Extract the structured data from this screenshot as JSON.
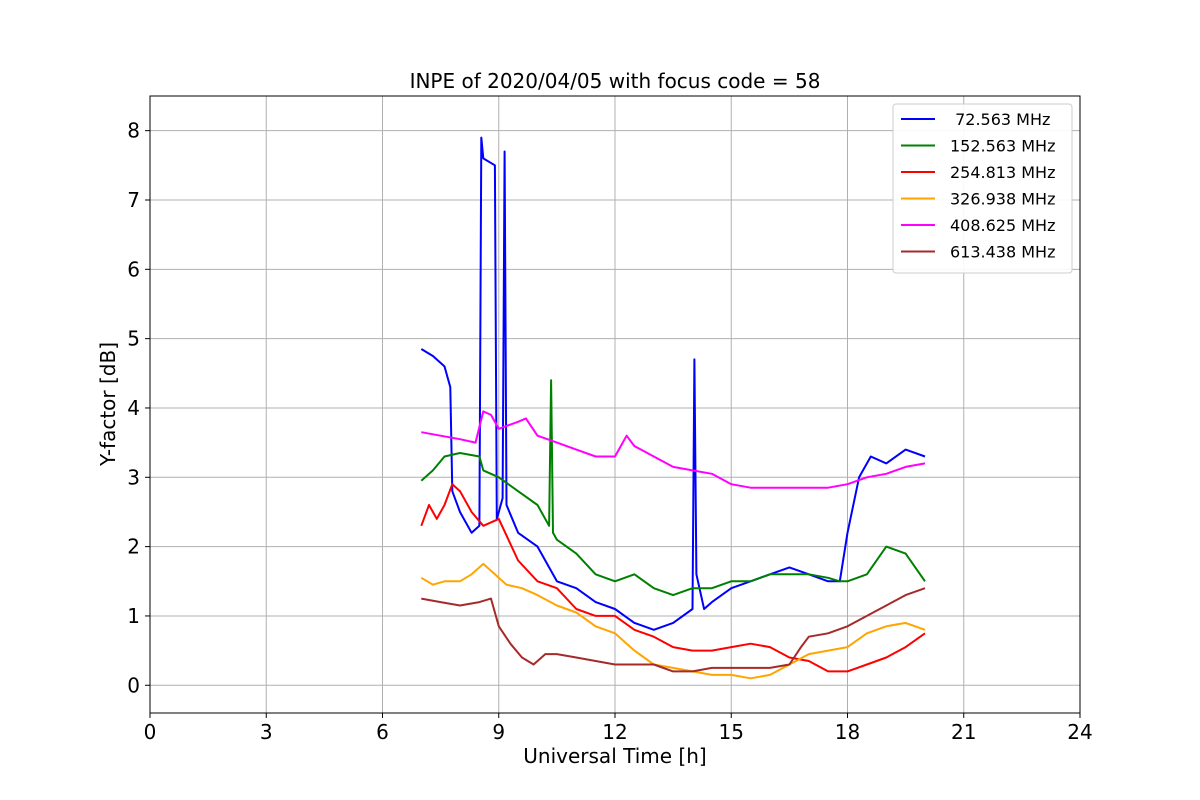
{
  "chart_data": {
    "type": "line",
    "title": "INPE of 2020/04/05 with focus code = 58",
    "xlabel": "Universal Time [h]",
    "ylabel": "Y-factor [dB]",
    "xlim": [
      0,
      24
    ],
    "ylim": [
      -0.4,
      8.5
    ],
    "xticks": [
      0,
      3,
      6,
      9,
      12,
      15,
      18,
      21,
      24
    ],
    "yticks": [
      0,
      1,
      2,
      3,
      4,
      5,
      6,
      7,
      8
    ],
    "grid": true,
    "legend_position": "top-right",
    "series": [
      {
        "name": " 72.563 MHz",
        "color": "#0000ff",
        "x": [
          7.0,
          7.3,
          7.6,
          7.75,
          7.8,
          8.0,
          8.3,
          8.5,
          8.55,
          8.6,
          8.9,
          8.95,
          9.0,
          9.1,
          9.15,
          9.2,
          9.5,
          10.0,
          10.5,
          11.0,
          11.5,
          12.0,
          12.5,
          13.0,
          13.5,
          14.0,
          14.05,
          14.1,
          14.3,
          14.5,
          15.0,
          15.5,
          16.0,
          16.5,
          17.0,
          17.5,
          17.8,
          18.0,
          18.3,
          18.6,
          19.0,
          19.5,
          20.0
        ],
        "y": [
          4.85,
          4.75,
          4.6,
          4.3,
          2.8,
          2.5,
          2.2,
          2.3,
          7.9,
          7.6,
          7.5,
          2.4,
          2.5,
          2.7,
          7.7,
          2.6,
          2.2,
          2.0,
          1.5,
          1.4,
          1.2,
          1.1,
          0.9,
          0.8,
          0.9,
          1.1,
          4.7,
          1.6,
          1.1,
          1.2,
          1.4,
          1.5,
          1.6,
          1.7,
          1.6,
          1.5,
          1.5,
          2.2,
          3.0,
          3.3,
          3.2,
          3.4,
          3.3
        ]
      },
      {
        "name": "152.563 MHz",
        "color": "#008000",
        "x": [
          7.0,
          7.3,
          7.6,
          8.0,
          8.5,
          8.6,
          9.0,
          9.5,
          10.0,
          10.3,
          10.35,
          10.4,
          10.5,
          11.0,
          11.5,
          12.0,
          12.5,
          13.0,
          13.5,
          14.0,
          14.5,
          15.0,
          15.5,
          16.0,
          16.5,
          17.0,
          17.5,
          17.8,
          18.0,
          18.5,
          19.0,
          19.5,
          20.0
        ],
        "y": [
          2.95,
          3.1,
          3.3,
          3.35,
          3.3,
          3.1,
          3.0,
          2.8,
          2.6,
          2.3,
          4.4,
          2.2,
          2.1,
          1.9,
          1.6,
          1.5,
          1.6,
          1.4,
          1.3,
          1.4,
          1.4,
          1.5,
          1.5,
          1.6,
          1.6,
          1.6,
          1.55,
          1.5,
          1.5,
          1.6,
          2.0,
          1.9,
          1.5
        ]
      },
      {
        "name": "254.813 MHz",
        "color": "#ff0000",
        "x": [
          7.0,
          7.2,
          7.4,
          7.6,
          7.8,
          8.0,
          8.3,
          8.6,
          9.0,
          9.5,
          10.0,
          10.5,
          11.0,
          11.5,
          12.0,
          12.5,
          13.0,
          13.5,
          14.0,
          14.5,
          15.0,
          15.5,
          16.0,
          16.5,
          17.0,
          17.5,
          18.0,
          18.5,
          19.0,
          19.5,
          20.0
        ],
        "y": [
          2.3,
          2.6,
          2.4,
          2.6,
          2.9,
          2.8,
          2.5,
          2.3,
          2.4,
          1.8,
          1.5,
          1.4,
          1.1,
          1.0,
          1.0,
          0.8,
          0.7,
          0.55,
          0.5,
          0.5,
          0.55,
          0.6,
          0.55,
          0.4,
          0.35,
          0.2,
          0.2,
          0.3,
          0.4,
          0.55,
          0.75
        ]
      },
      {
        "name": "326.938 MHz",
        "color": "#ffa500",
        "x": [
          7.0,
          7.3,
          7.6,
          8.0,
          8.3,
          8.6,
          8.9,
          9.2,
          9.6,
          10.0,
          10.5,
          11.0,
          11.5,
          12.0,
          12.5,
          13.0,
          13.5,
          14.0,
          14.5,
          15.0,
          15.5,
          16.0,
          16.5,
          17.0,
          17.5,
          18.0,
          18.5,
          19.0,
          19.5,
          20.0
        ],
        "y": [
          1.55,
          1.45,
          1.5,
          1.5,
          1.6,
          1.75,
          1.6,
          1.45,
          1.4,
          1.3,
          1.15,
          1.05,
          0.85,
          0.75,
          0.5,
          0.3,
          0.25,
          0.2,
          0.15,
          0.15,
          0.1,
          0.15,
          0.3,
          0.45,
          0.5,
          0.55,
          0.75,
          0.85,
          0.9,
          0.8
        ]
      },
      {
        "name": "408.625 MHz",
        "color": "#ff00ff",
        "x": [
          7.0,
          7.5,
          8.0,
          8.4,
          8.6,
          8.8,
          9.0,
          9.5,
          9.7,
          10.0,
          10.5,
          11.0,
          11.5,
          12.0,
          12.3,
          12.5,
          13.0,
          13.5,
          14.0,
          14.5,
          15.0,
          15.5,
          16.0,
          16.5,
          17.0,
          17.5,
          18.0,
          18.5,
          19.0,
          19.5,
          20.0
        ],
        "y": [
          3.65,
          3.6,
          3.55,
          3.5,
          3.95,
          3.9,
          3.7,
          3.8,
          3.85,
          3.6,
          3.5,
          3.4,
          3.3,
          3.3,
          3.6,
          3.45,
          3.3,
          3.15,
          3.1,
          3.05,
          2.9,
          2.85,
          2.85,
          2.85,
          2.85,
          2.85,
          2.9,
          3.0,
          3.05,
          3.15,
          3.2
        ]
      },
      {
        "name": "613.438 MHz",
        "color": "#a52a2a",
        "x": [
          7.0,
          7.5,
          8.0,
          8.5,
          8.8,
          9.0,
          9.3,
          9.6,
          9.9,
          10.2,
          10.5,
          11.0,
          11.5,
          12.0,
          12.5,
          13.0,
          13.5,
          14.0,
          14.5,
          15.0,
          15.5,
          16.0,
          16.5,
          16.8,
          17.0,
          17.5,
          18.0,
          18.5,
          19.0,
          19.5,
          20.0
        ],
        "y": [
          1.25,
          1.2,
          1.15,
          1.2,
          1.25,
          0.85,
          0.6,
          0.4,
          0.3,
          0.45,
          0.45,
          0.4,
          0.35,
          0.3,
          0.3,
          0.3,
          0.2,
          0.2,
          0.25,
          0.25,
          0.25,
          0.25,
          0.3,
          0.55,
          0.7,
          0.75,
          0.85,
          1.0,
          1.15,
          1.3,
          1.4
        ]
      }
    ]
  }
}
